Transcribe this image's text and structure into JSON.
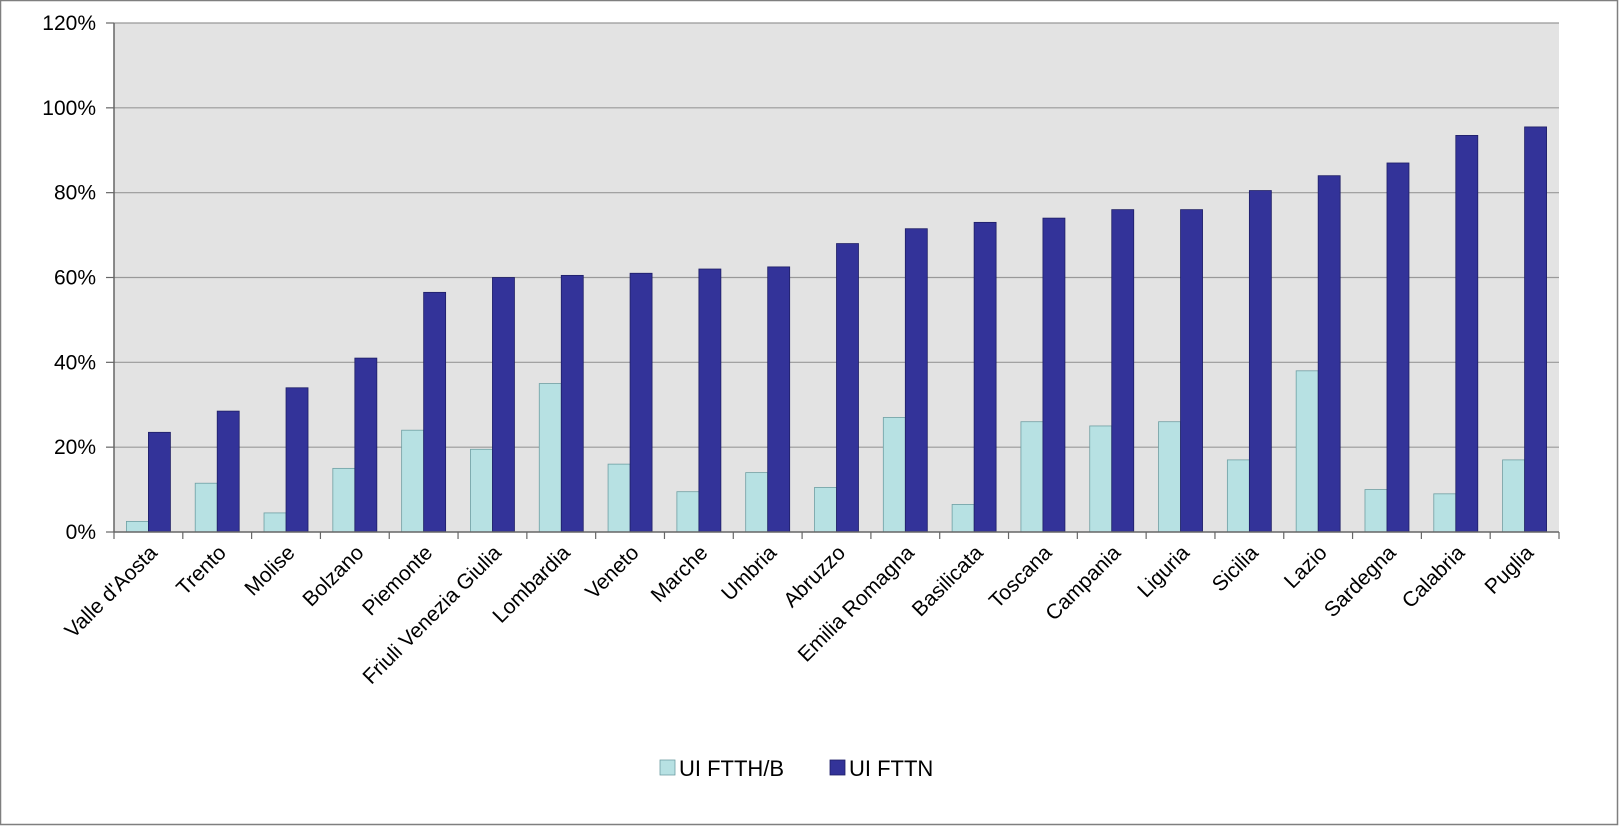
{
  "chart_data": {
    "type": "bar",
    "title": "",
    "xlabel": "",
    "ylabel": "",
    "ylim": [
      0,
      120
    ],
    "y_ticks": [
      "0%",
      "20%",
      "40%",
      "60%",
      "80%",
      "100%",
      "120%"
    ],
    "y_tick_values": [
      0,
      20,
      40,
      60,
      80,
      100,
      120
    ],
    "grid": true,
    "legend": "bottom",
    "categories": [
      "Valle d'Aosta",
      "Trento",
      "Molise",
      "Bolzano",
      "Piemonte",
      "Friuli Venezia Giulia",
      "Lombardia",
      "Veneto",
      "Marche",
      "Umbria",
      "Abruzzo",
      "Emilia Romagna",
      "Basilicata",
      "Toscana",
      "Campania",
      "Liguria",
      "Sicilia",
      "Lazio",
      "Sardegna",
      "Calabria",
      "Puglia"
    ],
    "series": [
      {
        "name": "UI FTTH/B",
        "color": "#b7e1e3",
        "values": [
          2.5,
          11.5,
          4.5,
          15,
          24,
          19.5,
          35,
          16,
          9.5,
          14,
          10.5,
          27,
          6.5,
          26,
          25,
          26,
          17,
          38,
          10,
          9,
          17
        ]
      },
      {
        "name": "UI FTTN",
        "color": "#333399",
        "values": [
          23.5,
          28.5,
          34,
          41,
          56.5,
          60,
          60.5,
          61,
          62,
          62.5,
          68,
          71.5,
          73,
          74,
          76,
          76,
          80.5,
          84,
          87,
          93.5,
          95.5
        ]
      }
    ],
    "colors": {
      "plot_background": "#e3e3e3",
      "grid": "#999999",
      "axis": "#666666"
    }
  }
}
